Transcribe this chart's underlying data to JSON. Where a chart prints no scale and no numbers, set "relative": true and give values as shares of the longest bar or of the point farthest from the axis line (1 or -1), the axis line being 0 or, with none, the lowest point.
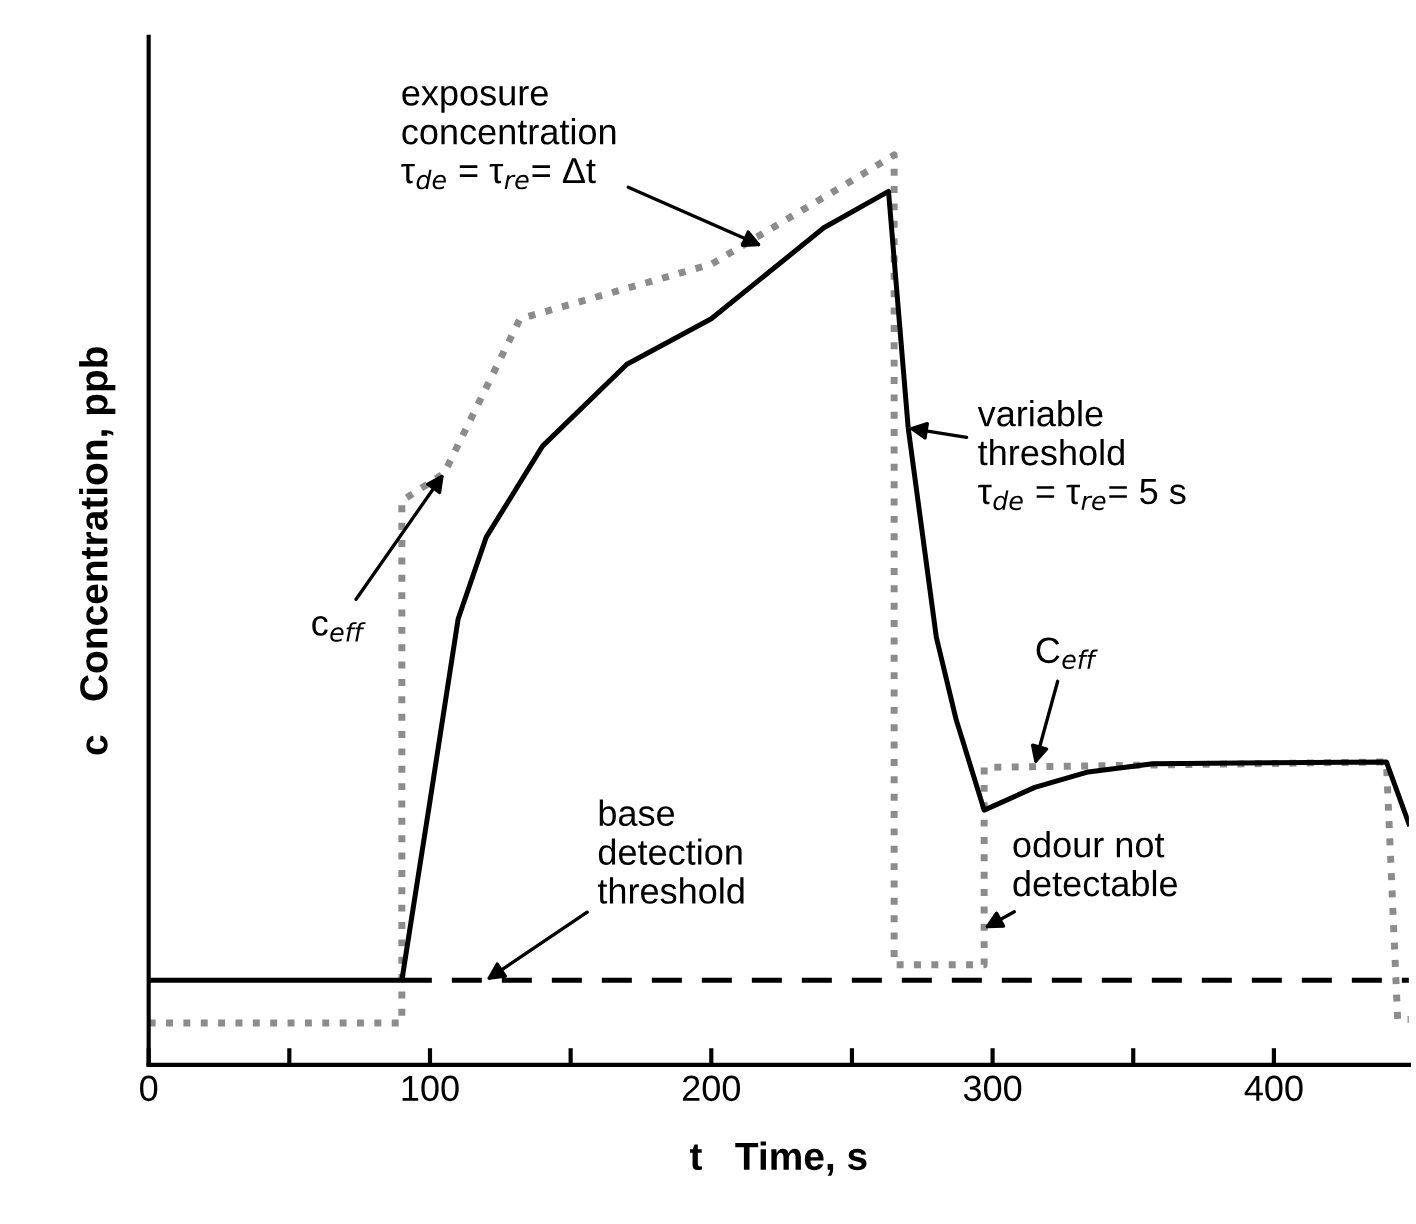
{
  "chart_data": {
    "type": "line",
    "relative": true,
    "xlabel": "t   Time, s",
    "ylabel": "c   Concentration, ppb",
    "xlim": [
      0,
      448
    ],
    "xticks": [
      0,
      {
        "value": 50,
        "label": null
      },
      100,
      {
        "value": 150,
        "label": null
      },
      200,
      {
        "value": 250,
        "label": null
      },
      300,
      {
        "value": 350,
        "label": null
      },
      400
    ],
    "grid": false,
    "legend": false,
    "marker": "none",
    "series": [
      {
        "color": "#8c8c8c",
        "line_style": "dotted",
        "x": [
          0,
          90,
          90,
          105,
          132,
          200,
          249,
          265,
          265,
          297,
          297,
          440,
          444,
          448
        ],
        "values": [
          0.046,
          0.046,
          0.62,
          0.65,
          0.82,
          0.88,
          0.97,
          1.0,
          0.11,
          0.11,
          0.327,
          0.333,
          0.05,
          0.05
        ]
      },
      {
        "color": "#000000",
        "line_style": "solid",
        "x": [
          0,
          90,
          100,
          110,
          120,
          140,
          170,
          200,
          240,
          263,
          270,
          280,
          287,
          297,
          315,
          334,
          357,
          440,
          448
        ],
        "values": [
          0.093,
          0.093,
          0.29,
          0.49,
          0.58,
          0.68,
          0.77,
          0.82,
          0.92,
          0.96,
          0.7,
          0.47,
          0.38,
          0.28,
          0.305,
          0.322,
          0.331,
          0.333,
          0.265
        ]
      },
      {
        "color": "#000000",
        "line_style": "dashed",
        "x": [
          90,
          448
        ],
        "values": [
          0.093,
          0.093
        ]
      }
    ],
    "annotations": [
      {
        "text": "exposure\nconcentration\nτ$_{de}$ = τ$_{re}$= Δt",
        "x": 218,
        "y": 0.9
      },
      {
        "text": "c$_{eff}$",
        "x": 105,
        "y": 0.65
      },
      {
        "text": "variable\nthreshold\nτ$_{de}$ = τ$_{re}$= 5 s",
        "x": 270,
        "y": 0.7
      },
      {
        "text": "C$_{eff}$",
        "x": 315,
        "y": 0.33
      },
      {
        "text": "base\ndetection\nthreshold",
        "x": 120,
        "y": 0.093
      },
      {
        "text": "odour not\ndetectable",
        "x": 297,
        "y": 0.15
      }
    ]
  }
}
